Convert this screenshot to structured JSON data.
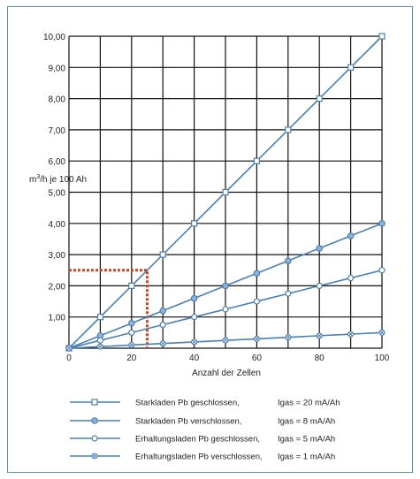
{
  "chart_data": {
    "type": "line",
    "xlabel": "Anzahl der Zellen",
    "ylabel": "m³/h je 100 Ah",
    "xlim": [
      0,
      100
    ],
    "ylim": [
      0,
      10
    ],
    "x_ticks": [
      "0",
      "20",
      "40",
      "60",
      "80",
      "100"
    ],
    "y_ticks": [
      "1,00",
      "2,00",
      "3,00",
      "4,00",
      "5,00",
      "6,00",
      "7,00",
      "8,00",
      "9,00",
      "10,00"
    ],
    "grid": true,
    "x": [
      0,
      10,
      20,
      30,
      40,
      50,
      60,
      70,
      80,
      90,
      100
    ],
    "series": [
      {
        "name": "Starkladen Pb geschlossen,",
        "gas_label": "Igas = 20 mA/Ah",
        "marker": "square",
        "values": [
          0,
          1,
          2,
          3,
          4,
          5,
          6,
          7,
          8,
          9,
          10
        ]
      },
      {
        "name": "Starkladen Pb verschlossen,",
        "gas_label": "Igas = 8 mA/Ah",
        "marker": "filled-circle",
        "values": [
          0,
          0.4,
          0.8,
          1.2,
          1.6,
          2.0,
          2.4,
          2.8,
          3.2,
          3.6,
          4.0
        ]
      },
      {
        "name": "Erhaltungsladen Pb geschlossen,",
        "gas_label": "Igas = 5 mA/Ah",
        "marker": "open-circle",
        "values": [
          0,
          0.25,
          0.5,
          0.75,
          1.0,
          1.25,
          1.5,
          1.75,
          2.0,
          2.25,
          2.5
        ]
      },
      {
        "name": "Erhaltungsladen Pb verschlossen,",
        "gas_label": "Igas = 1 mA/Ah",
        "marker": "x-circle",
        "values": [
          0,
          0.05,
          0.1,
          0.15,
          0.2,
          0.25,
          0.3,
          0.35,
          0.4,
          0.45,
          0.5
        ]
      }
    ],
    "annotation": {
      "type": "dashed-guide",
      "color": "#d0401a",
      "x": 25,
      "y": 2.5
    },
    "colors": {
      "line": "#4a7fb5",
      "grid": "#111111",
      "frame": "#5a8fb8"
    }
  }
}
